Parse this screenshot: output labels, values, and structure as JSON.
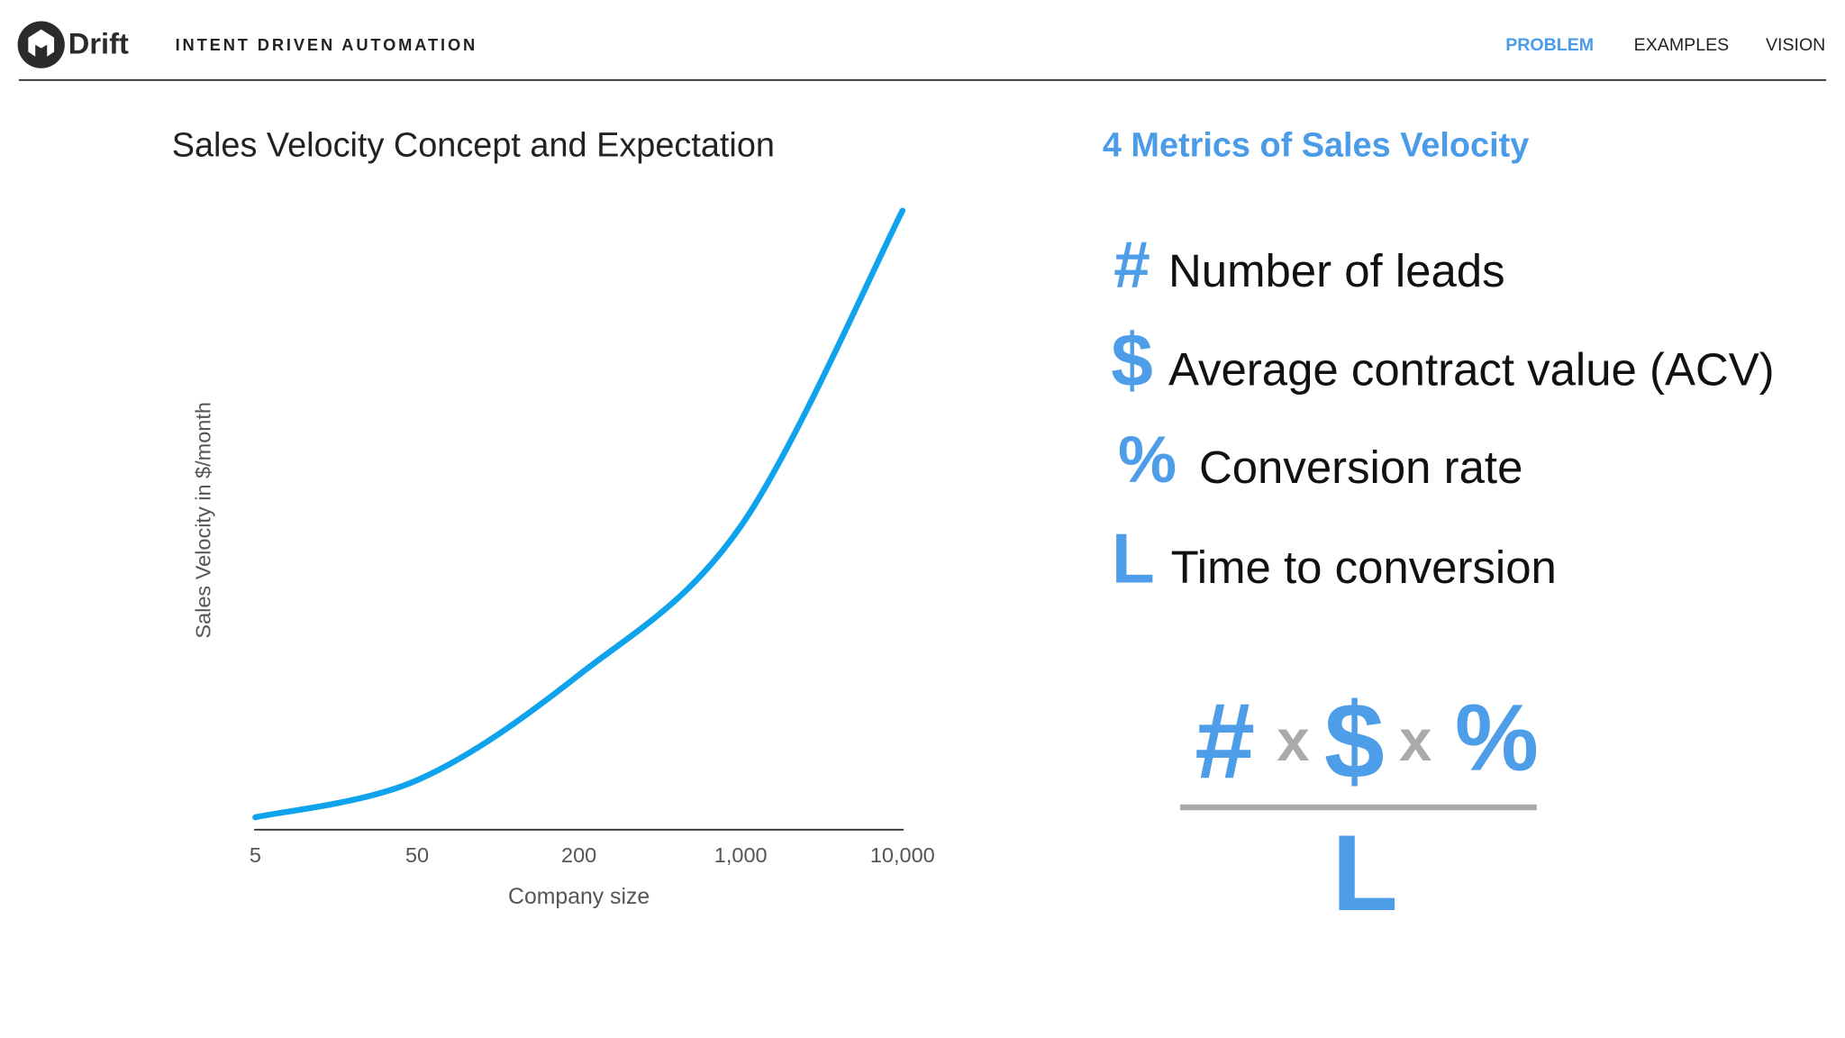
{
  "header": {
    "logo": "Drift",
    "tagline": "INTENT DRIVEN AUTOMATION",
    "nav": [
      "PROBLEM",
      "EXAMPLES",
      "VISION"
    ]
  },
  "chart_data": {
    "type": "line",
    "title": "Sales Velocity Concept and Expectation",
    "x_label": "Company size",
    "y_label": "Sales Velocity in $/month",
    "categories": [
      "5",
      "50",
      "200",
      "1,000",
      "10,000"
    ],
    "values": [
      2,
      8,
      25,
      49,
      100
    ],
    "color": "#0ea3ec",
    "ylim": [
      0,
      100
    ]
  },
  "metrics": {
    "title": "4 Metrics of Sales Velocity",
    "items": [
      {
        "symbol": "#",
        "label": "Number of leads"
      },
      {
        "symbol": "$",
        "label": "Average contract value (ACV)"
      },
      {
        "symbol": "%",
        "label": "Conversion rate"
      },
      {
        "symbol": "L",
        "label": "Time to conversion"
      }
    ]
  },
  "formula": {
    "numerator": [
      "#",
      "x",
      "$",
      "x",
      "%"
    ],
    "denominator": "L"
  }
}
